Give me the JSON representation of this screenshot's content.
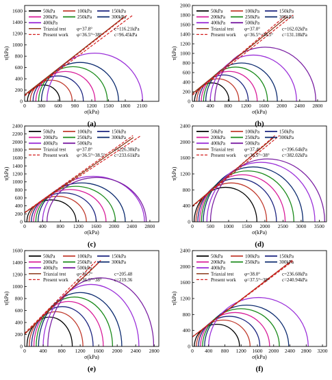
{
  "figure": {
    "panels": [
      {
        "label": "(a)",
        "xlabel": "σ(kPa)",
        "ylabel": "τ(kPa)"
      },
      {
        "label": "(b)",
        "xlabel": "σ(kPa)",
        "ylabel": "τ(kPa)"
      },
      {
        "label": "(c)",
        "xlabel": "σ(kPa)",
        "ylabel": "τ(kPa)"
      },
      {
        "label": "(d)",
        "xlabel": "σ(kPa)",
        "ylabel": "τ(kPa)"
      },
      {
        "label": "(e)",
        "xlabel": "σ(kPa)",
        "ylabel": "τ(kPa)"
      },
      {
        "label": "(f)",
        "xlabel": "σ(kPa)",
        "ylabel": "τ(kPa)"
      }
    ]
  },
  "chart_data": [
    {
      "type": "line",
      "label": "(a)",
      "xlabel": "σ(kPa)",
      "ylabel": "τ(kPa)",
      "xlim": [
        0,
        2400
      ],
      "ylim": [
        0,
        1700
      ],
      "xticks": [
        0,
        300,
        600,
        900,
        1200,
        1500,
        1800,
        2100
      ],
      "yticks": [
        0,
        200,
        400,
        600,
        800,
        1000,
        1200,
        1400,
        1600
      ],
      "legend_cols": 3,
      "circles": [
        {
          "name": "50kPa",
          "s3": 50,
          "s1": 630
        },
        {
          "name": "100kPa",
          "s3": 100,
          "s1": 850
        },
        {
          "name": "150kPa",
          "s3": 150,
          "s1": 1050
        },
        {
          "name": "200kPa",
          "s3": 200,
          "s1": 1260
        },
        {
          "name": "250kPa",
          "s3": 250,
          "s1": 1480
        },
        {
          "name": "300kPa",
          "s3": 300,
          "s1": 1680
        },
        {
          "name": "400kPa",
          "s3": 400,
          "s1": 2110
        }
      ],
      "triaxial": {
        "name": "Triaxial test",
        "phi": "φ=37.8°",
        "c": "c=116.21kPa",
        "phi_deg": 37.8,
        "c_val": 116.21
      },
      "present": {
        "name": "Present work",
        "phi": "φ=36.5°~38°",
        "c": "c=96.45kPa",
        "phi_deg": [
          36.5,
          38.0
        ],
        "c_val": 96.45
      }
    },
    {
      "type": "line",
      "label": "(b)",
      "xlabel": "σ(kPa)",
      "ylabel": "τ(kPa)",
      "xlim": [
        0,
        3000
      ],
      "ylim": [
        0,
        2000
      ],
      "xticks": [
        0,
        400,
        800,
        1200,
        1600,
        2000,
        2400,
        2800
      ],
      "yticks": [
        0,
        200,
        400,
        600,
        800,
        1000,
        1200,
        1400,
        1600,
        1800,
        2000
      ],
      "legend_cols": 3,
      "circles": [
        {
          "name": "50kPa",
          "s3": 50,
          "s1": 820
        },
        {
          "name": "100kPa",
          "s3": 100,
          "s1": 1040
        },
        {
          "name": "150kPa",
          "s3": 150,
          "s1": 1250
        },
        {
          "name": "200kPa",
          "s3": 200,
          "s1": 1450
        },
        {
          "name": "250kPa",
          "s3": 250,
          "s1": 1680
        },
        {
          "name": "300kPa",
          "s3": 300,
          "s1": 1900
        },
        {
          "name": "400kPa",
          "s3": 400,
          "s1": 2330
        },
        {
          "name": "500kPa",
          "s3": 500,
          "s1": 2760
        }
      ],
      "triaxial": {
        "name": "Triaxial test",
        "phi": "φ=37.0°",
        "c": "c=162.02kPa",
        "phi_deg": 37.0,
        "c_val": 162.02
      },
      "present": {
        "name": "Present work",
        "phi": "φ=36.5°~38.5°",
        "c": "c=131.18kPa",
        "phi_deg": [
          36.5,
          38.5
        ],
        "c_val": 131.18
      }
    },
    {
      "type": "line",
      "label": "(c)",
      "xlabel": "σ(kPa)",
      "ylabel": "τ(kPa)",
      "xlim": [
        0,
        3000
      ],
      "ylim": [
        0,
        2400
      ],
      "xticks": [
        0,
        400,
        800,
        1200,
        1600,
        2000,
        2400,
        2800
      ],
      "yticks": [
        0,
        200,
        400,
        600,
        800,
        1000,
        1200,
        1400,
        1600,
        1800,
        2000,
        2200,
        2400
      ],
      "legend_cols": 3,
      "circles": [
        {
          "name": "50kPa",
          "s3": 50,
          "s1": 1150
        },
        {
          "name": "100kPa",
          "s3": 100,
          "s1": 1380
        },
        {
          "name": "150kPa",
          "s3": 150,
          "s1": 1600
        },
        {
          "name": "200kPa",
          "s3": 200,
          "s1": 1820
        },
        {
          "name": "250kPa",
          "s3": 250,
          "s1": 2030
        },
        {
          "name": "300kPa",
          "s3": 300,
          "s1": 2250
        },
        {
          "name": "400kPa",
          "s3": 400,
          "s1": 2680
        },
        {
          "name": "500kPa",
          "s3": 500,
          "s1": 2720
        }
      ],
      "triaxial": {
        "name": "Triaxial test",
        "phi": "φ=37.8°",
        "c": "c=226.38kPa",
        "phi_deg": 37.8,
        "c_val": 226.38
      },
      "present": {
        "name": "Present work",
        "phi": "φ=36.5°~38.5°",
        "c": "c=233.61kPa",
        "phi_deg": [
          36.5,
          38.5
        ],
        "c_val": 233.61
      }
    },
    {
      "type": "line",
      "label": "(d)",
      "xlabel": "σ(kPa)",
      "ylabel": "τ(kPa)",
      "xlim": [
        0,
        3700
      ],
      "ylim": [
        0,
        2400
      ],
      "xticks": [
        0,
        500,
        1000,
        1500,
        2000,
        2500,
        3000,
        3500
      ],
      "yticks": [
        0,
        400,
        800,
        1200,
        1600,
        2000,
        2400
      ],
      "legend_cols": 3,
      "circles": [
        {
          "name": "50kPa",
          "s3": 50,
          "s1": 1780
        },
        {
          "name": "100kPa",
          "s3": 100,
          "s1": 2050
        },
        {
          "name": "150kPa",
          "s3": 150,
          "s1": 2320
        },
        {
          "name": "200kPa",
          "s3": 200,
          "s1": 2560
        },
        {
          "name": "250kPa",
          "s3": 250,
          "s1": 2800
        },
        {
          "name": "300kPa",
          "s3": 300,
          "s1": 3050
        },
        {
          "name": "400kPa",
          "s3": 400,
          "s1": 3380
        },
        {
          "name": "500kPa",
          "s3": 500,
          "s1": 3650
        }
      ],
      "triaxial": {
        "name": "Triaxial test",
        "phi": "φ=37.4°",
        "c": "c=396.64kPa",
        "phi_deg": 37.4,
        "c_val": 396.64
      },
      "present": {
        "name": "Present work",
        "phi": "φ=36.5°~38°",
        "c": "c=382.02kPa",
        "phi_deg": [
          36.5,
          38.0
        ],
        "c_val": 382.02
      }
    },
    {
      "type": "line",
      "label": "(e)",
      "xlabel": "σ(kPa)",
      "ylabel": "τ(kPa)",
      "xlim": [
        0,
        2900
      ],
      "ylim": [
        0,
        1600
      ],
      "xticks": [
        0,
        400,
        800,
        1200,
        1600,
        2000,
        2400,
        2800
      ],
      "yticks": [
        0,
        200,
        400,
        600,
        800,
        1000,
        1200,
        1400,
        1600
      ],
      "legend_cols": 3,
      "circles": [
        {
          "name": "50kPa",
          "s3": 50,
          "s1": 1030
        },
        {
          "name": "100kPa",
          "s3": 100,
          "s1": 1260
        },
        {
          "name": "150kPa",
          "s3": 150,
          "s1": 1480
        },
        {
          "name": "200kPa",
          "s3": 200,
          "s1": 1700
        },
        {
          "name": "250kPa",
          "s3": 250,
          "s1": 1900
        },
        {
          "name": "300kPa",
          "s3": 300,
          "s1": 2100
        },
        {
          "name": "400kPa",
          "s3": 400,
          "s1": 2470
        },
        {
          "name": "500kPa",
          "s3": 500,
          "s1": 2790
        }
      ],
      "triaxial": {
        "name": "Triaxial test",
        "phi": "φ=36.7°",
        "c": "c=205.48",
        "phi_deg": 36.7,
        "c_val": 205.48
      },
      "present": {
        "name": "Present work",
        "phi": "φ=36.5°~38°",
        "c": "c=219.36",
        "phi_deg": [
          36.5,
          38.0
        ],
        "c_val": 219.36
      }
    },
    {
      "type": "line",
      "label": "(f)",
      "xlabel": "σ(kPa)",
      "ylabel": "τ(kPa)",
      "xlim": [
        0,
        3300
      ],
      "ylim": [
        0,
        2400
      ],
      "xticks": [
        0,
        400,
        800,
        1200,
        1600,
        2000,
        2400,
        2800,
        3200
      ],
      "yticks": [
        0,
        400,
        800,
        1200,
        1600,
        2000,
        2400
      ],
      "legend_cols": 3,
      "circles": [
        {
          "name": "50kPa",
          "s3": 50,
          "s1": 1160
        },
        {
          "name": "100kPa",
          "s3": 100,
          "s1": 1420
        },
        {
          "name": "150kPa",
          "s3": 150,
          "s1": 1660
        },
        {
          "name": "200kPa",
          "s3": 200,
          "s1": 1900
        },
        {
          "name": "250kPa",
          "s3": 250,
          "s1": 2140
        },
        {
          "name": "300kPa",
          "s3": 300,
          "s1": 2370
        },
        {
          "name": "400kPa",
          "s3": 400,
          "s1": 2850
        }
      ],
      "triaxial": {
        "name": "Triaxial test",
        "phi": "φ=38.0°",
        "c": "c=236.60kPa",
        "phi_deg": 38.0,
        "c_val": 236.6
      },
      "present": {
        "name": "Present work",
        "phi": "φ=37.5°~38°",
        "c": "c=240.94kPa",
        "phi_deg": [
          37.5,
          38.0
        ],
        "c_val": 240.94
      }
    }
  ],
  "colors": {
    "50kPa": "#000000",
    "100kPa": "#c0392b",
    "150kPa": "#1a237e",
    "200kPa": "#d81b99",
    "250kPa": "#1a8a1a",
    "300kPa": "#0b2a6e",
    "400kPa": "#9b30d9",
    "500kPa": "#7a1fa2",
    "triaxial": "#8b3a1a",
    "present": "#d42020",
    "axis": "#000000"
  }
}
